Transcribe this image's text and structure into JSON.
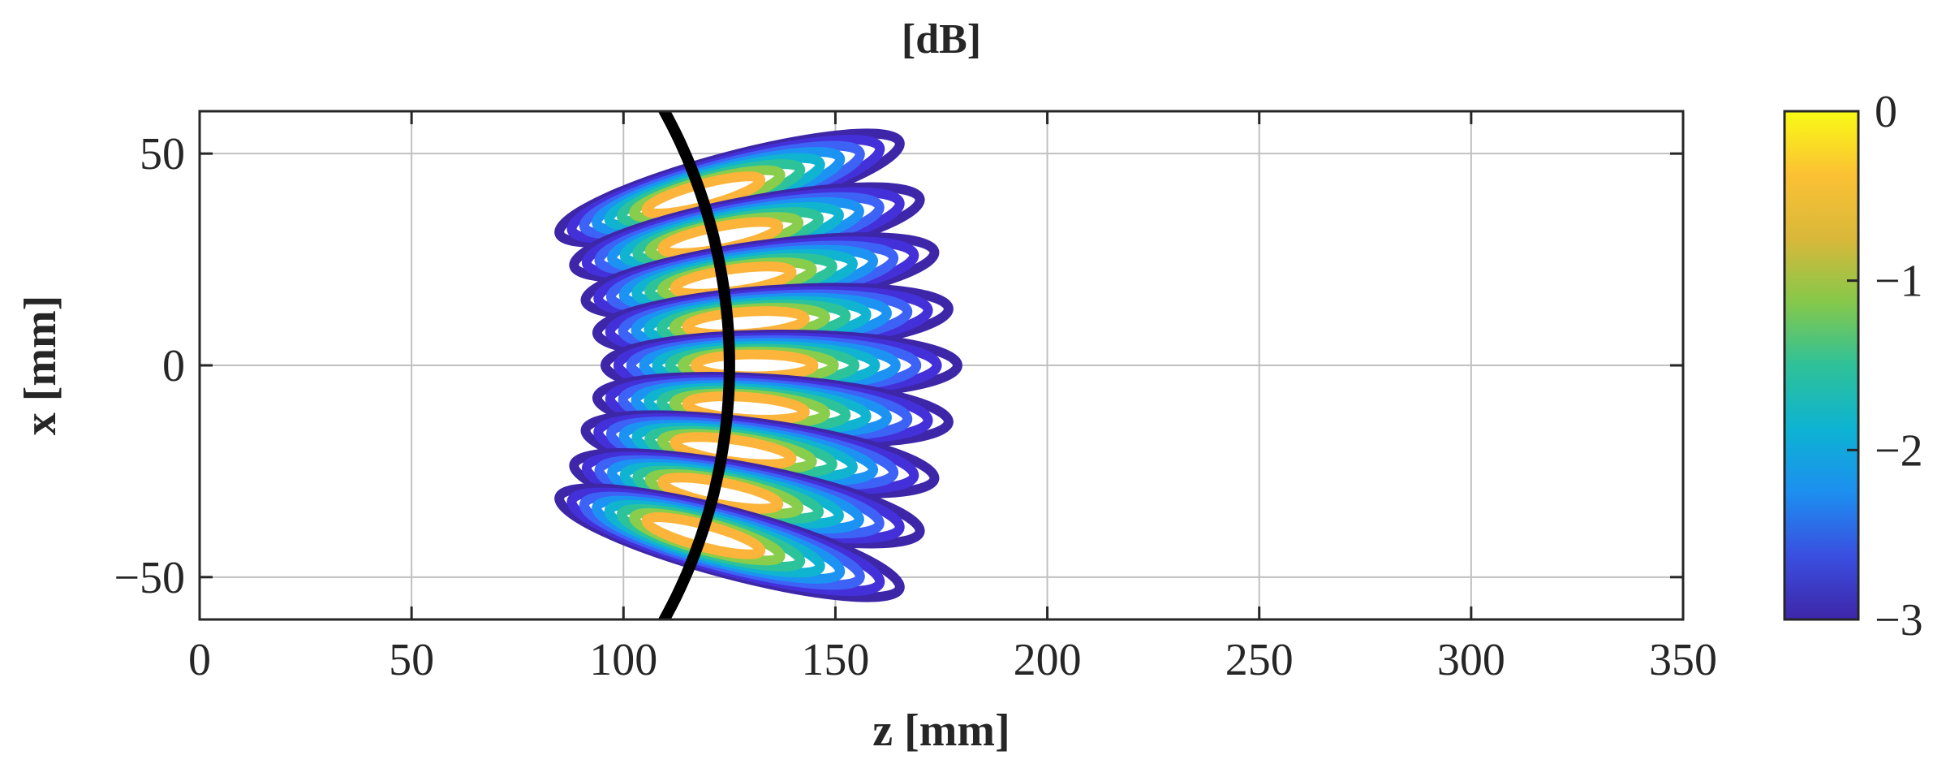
{
  "chart_data": {
    "type": "contour",
    "title": "[dB]",
    "xlabel": "z [mm]",
    "ylabel": "x [mm]",
    "xlim": [
      0,
      350
    ],
    "ylim": [
      -60,
      60
    ],
    "xticks": [
      0,
      50,
      100,
      150,
      200,
      250,
      300,
      350
    ],
    "xtick_labels": [
      "0",
      "50",
      "100",
      "150",
      "200",
      "250",
      "300",
      "350"
    ],
    "yticks": [
      -50,
      0,
      50
    ],
    "ytick_labels": [
      "−50",
      "0",
      "50"
    ],
    "grid": true,
    "colorbar": {
      "range": [
        -3,
        0
      ],
      "ticks": [
        0,
        -1,
        -2,
        -3
      ],
      "tick_labels": [
        "0",
        "−1",
        "−2",
        "−3"
      ],
      "colors": [
        "#3e26a8",
        "#3a4fe0",
        "#1d8ff0",
        "#0db3d2",
        "#2fc198",
        "#86c84a",
        "#d9b83a",
        "#fbc134",
        "#f9fb15"
      ]
    },
    "contour_levels": [
      -3,
      -2.625,
      -2.25,
      -1.875,
      -1.5,
      -1.125,
      -0.75,
      -0.375
    ],
    "level_colors": [
      "#3e26a8",
      "#4430d8",
      "#3d62f6",
      "#1c93f2",
      "#10b3d0",
      "#2cc39a",
      "#88cd4c",
      "#fcb43a"
    ],
    "focal_spots": [
      {
        "z": 118,
        "x": 40,
        "tilt_deg": 15
      },
      {
        "z": 122,
        "x": 30,
        "tilt_deg": 11
      },
      {
        "z": 125,
        "x": 20,
        "tilt_deg": 8
      },
      {
        "z": 128,
        "x": 10,
        "tilt_deg": 4
      },
      {
        "z": 130,
        "x": 0,
        "tilt_deg": 0
      },
      {
        "z": 128,
        "x": -10,
        "tilt_deg": -4
      },
      {
        "z": 125,
        "x": -20,
        "tilt_deg": -8
      },
      {
        "z": 122,
        "x": -30,
        "tilt_deg": -11
      },
      {
        "z": 118,
        "x": -40,
        "tilt_deg": -15
      }
    ],
    "focal_arc": {
      "color": "#000000",
      "center_z": 0,
      "center_x": 0,
      "radius": 125
    }
  }
}
